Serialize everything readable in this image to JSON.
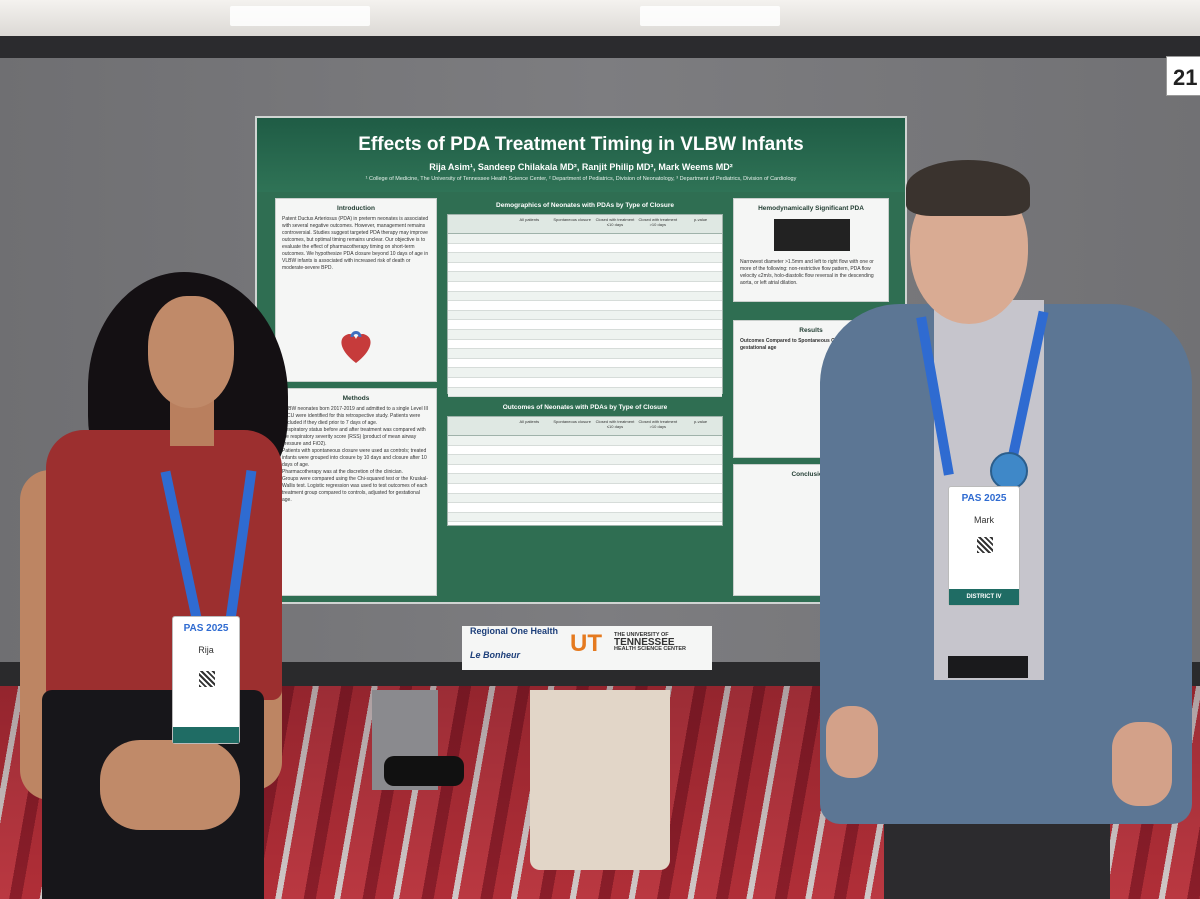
{
  "poster": {
    "title": "Effects of PDA Treatment Timing in VLBW Infants",
    "authors": "Rija Asim¹, Sandeep Chilakala MD², Ranjit Philip MD³, Mark Weems MD²",
    "affiliations": "¹ College of Medicine, The University of Tennessee Health Science Center, ² Department of Pediatrics, Division of Neonatology, ³ Department of Pediatrics, Division of Cardiology",
    "sections": {
      "introduction_title": "Introduction",
      "introduction_text": "Patent Ductus Arteriosus (PDA) in preterm neonates is associated with several negative outcomes. However, management remains controversial. Studies suggest targeted PDA therapy may improve outcomes, but optimal timing remains unclear. Our objective is to evaluate the effect of pharmacotherapy timing on short-term outcomes. We hypothesize PDA closure beyond 10 days of age in VLBW infants is associated with increased risk of death or moderate-severe BPD.",
      "methods_title": "Methods",
      "methods_text": "VLBW neonates born 2017-2019 and admitted to a single Level III NICU were identified for this retrospective study. Patients were excluded if they died prior to 7 days of age.\nRespiratory status before and after treatment was compared with the respiratory severity score (RSS) (product of mean airway pressure and FiO2).\nPatients with spontaneous closure were used as controls; treated infants were grouped into closure by 10 days and closure after 10 days of age.\nPharmacotherapy was at the discretion of the clinician.\nGroups were compared using the Chi-squared test or the Kruskal-Wallis test. Logistic regression was used to test outcomes of each treatment group compared to controls, adjusted for gestational age.",
      "demographics_title": "Demographics of Neonates with PDAs by Type of Closure",
      "outcomes_title": "Outcomes of Neonates with PDAs by Type of Closure",
      "hsPDA_title": "Hemodynamically Significant PDA",
      "hsPDA_text": "Narrowest diameter >1.5mm and left to right flow with one or more of the following: non-restrictive flow pattern, PDA flow velocity ≤2m/s, holo-diastolic flow reversal in the descending aorta, or left atrial dilation.",
      "results_title": "Results",
      "results_subtitle": "Outcomes Compared to Spontaneous Closure Adjusted for gestational age",
      "conclusions_title": "Conclusions"
    },
    "table_headers": [
      "All patients",
      "Spontaneous closure",
      "Closed with treatment ≤10 days",
      "Closed with treatment >10 days",
      "p-value"
    ],
    "logos": {
      "regional_one": "Regional One Health",
      "le_bonheur": "Le Bonheur",
      "ut_mark": "UT",
      "ut_line1": "THE UNIVERSITY OF",
      "ut_line2": "TENNESSEE",
      "ut_line3": "HEALTH SCIENCE CENTER"
    }
  },
  "booth_number": "21",
  "badges": {
    "left_name": "Rija",
    "right_name": "Mark",
    "event": "PAS 2025",
    "right_band": "DISTRICT IV"
  }
}
